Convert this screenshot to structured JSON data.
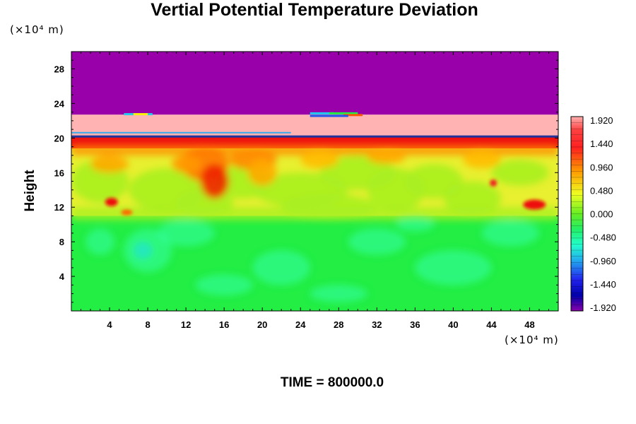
{
  "chart_data": {
    "type": "heatmap",
    "title": "Vertial Potential Temperature Deviation",
    "ylabel": "Height",
    "x_unit": "(×10⁴ m)",
    "y_unit": "(×10⁴ m)",
    "footer": "TIME = 800000.0",
    "x_ticks": [
      4,
      8,
      12,
      16,
      20,
      24,
      28,
      32,
      36,
      40,
      44,
      48
    ],
    "y_ticks": [
      4,
      8,
      12,
      16,
      20,
      24,
      28
    ],
    "xlim": [
      0,
      51
    ],
    "ylim": [
      0,
      30
    ],
    "colorbar": {
      "range": [
        -1.92,
        1.92
      ],
      "labels": [
        "1.920",
        "1.440",
        "0.960",
        "0.480",
        "0.000",
        "-0.480",
        "-0.960",
        "-1.440",
        "-1.920"
      ]
    },
    "regions": [
      {
        "y": [
          22.7,
          30
        ],
        "value": -1.92
      },
      {
        "y": [
          20.2,
          22.7
        ],
        "value": 1.92
      },
      {
        "y": [
          18.8,
          20.2
        ],
        "value": 1.6
      },
      {
        "y": [
          11,
          18.8
        ],
        "value": 0.5
      },
      {
        "y": [
          0,
          11
        ],
        "value": -0.1
      }
    ],
    "colors": {
      "top": "#9900aa",
      "pink": "#ffb3b3",
      "red": "#ee1010",
      "orange": "#ff8c00",
      "yellow": "#e8f030",
      "lime": "#a8f020",
      "green": "#22ee44",
      "teal": "#33ffaa",
      "cyan": "#22ddee"
    }
  }
}
